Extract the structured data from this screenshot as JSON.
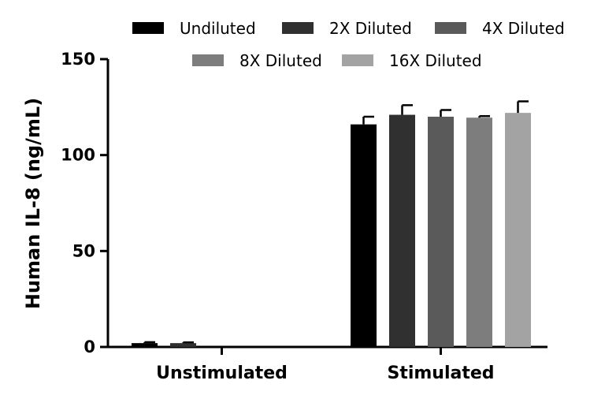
{
  "chart_data": {
    "type": "bar",
    "categories": [
      "Unstimulated",
      "Stimulated"
    ],
    "ylabel": "Human IL-8 (ng/mL)",
    "ylim": [
      0,
      150
    ],
    "yticks": [
      "0",
      "50",
      "100",
      "150"
    ],
    "legend_position": "top",
    "series": [
      {
        "name": "Undiluted",
        "color": "#000000",
        "values": [
          2.0,
          116.0
        ],
        "errors": [
          0.5,
          4.0
        ]
      },
      {
        "name": "2X Diluted",
        "color": "#303030",
        "values": [
          2.0,
          121.0
        ],
        "errors": [
          0.4,
          5.0
        ]
      },
      {
        "name": "4X Diluted",
        "color": "#5a5a5a",
        "values": [
          0.0,
          120.0
        ],
        "errors": [
          0.0,
          3.5
        ]
      },
      {
        "name": "8X Diluted",
        "color": "#7d7d7d",
        "values": [
          0.0,
          119.5
        ],
        "errors": [
          0.0,
          0.8
        ]
      },
      {
        "name": "16X Diluted",
        "color": "#a3a3a3",
        "values": [
          0.0,
          122.0
        ],
        "errors": [
          0.0,
          6.0
        ]
      }
    ]
  }
}
